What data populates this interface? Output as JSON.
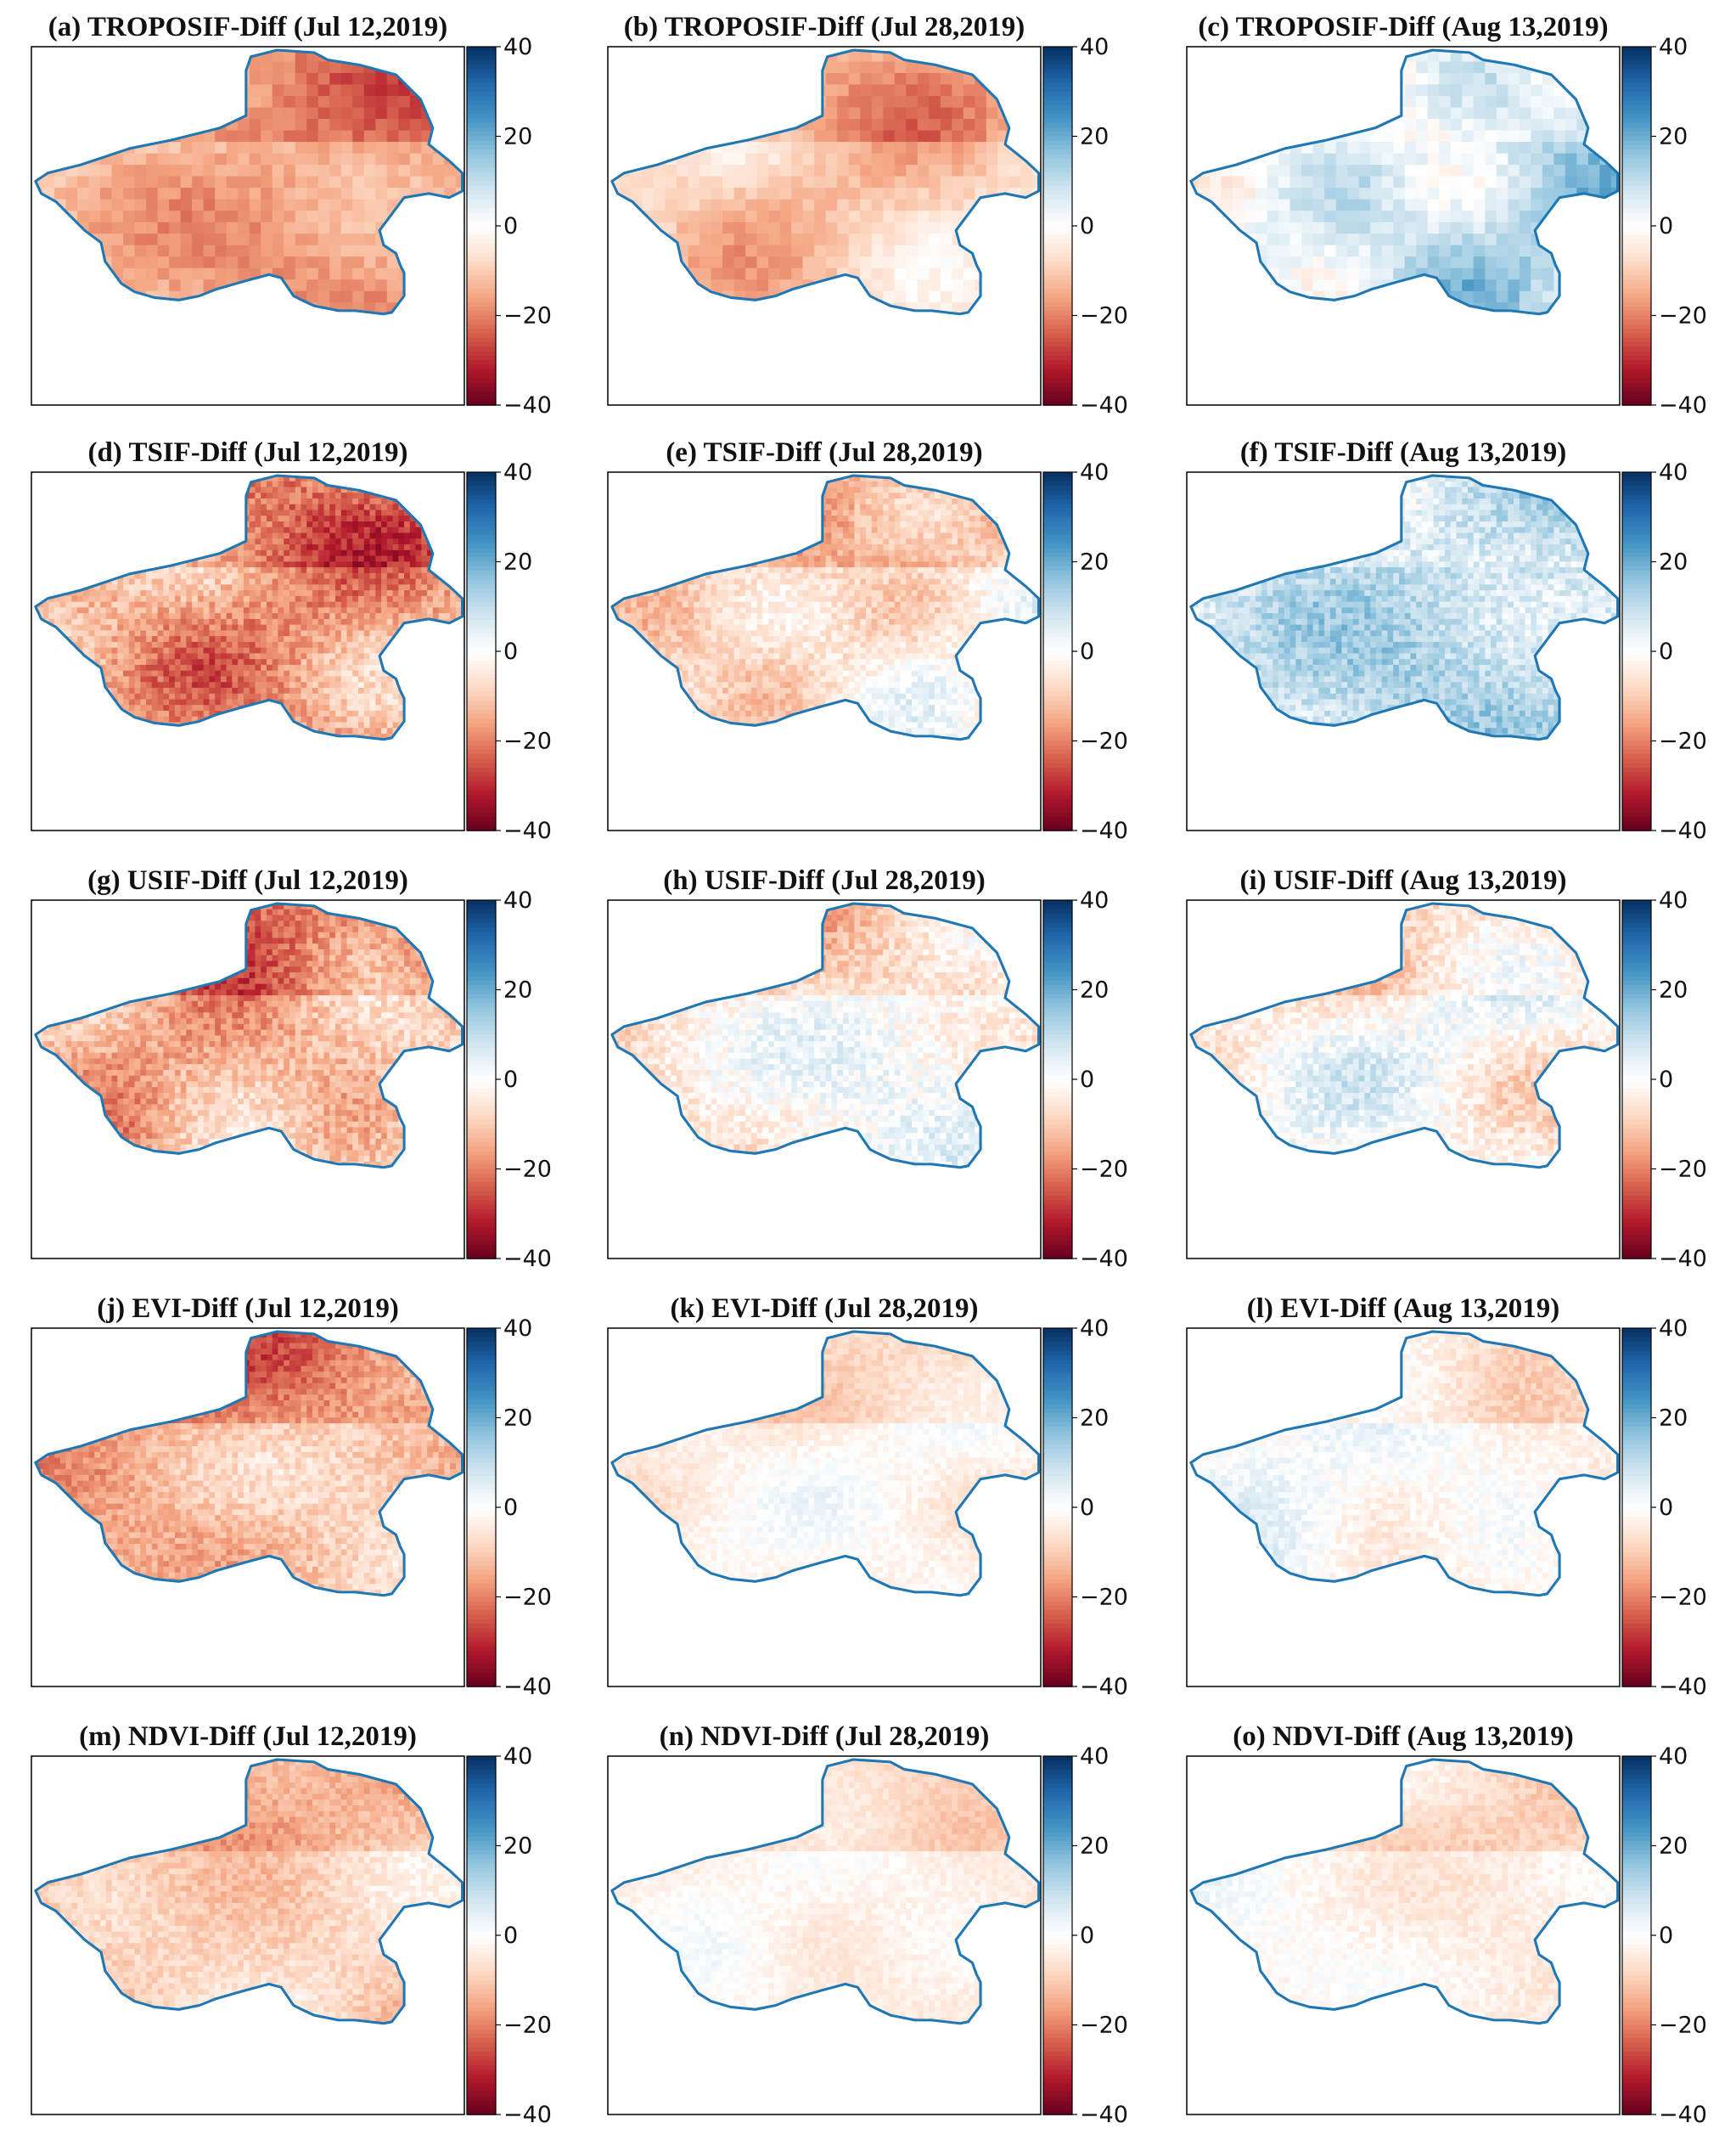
{
  "figure": {
    "colormap": "RdBu",
    "colors": {
      "boundary": "#1f77b4",
      "frame": "#000000",
      "ramp": [
        "#67001f",
        "#b2182b",
        "#d6604d",
        "#f4a582",
        "#fddbc7",
        "#ffffff",
        "#d1e5f0",
        "#92c5de",
        "#4393c3",
        "#2166ac",
        "#053061"
      ]
    },
    "colorbar": {
      "min": -40,
      "max": 40,
      "ticks": [
        40,
        20,
        0,
        -20,
        -40
      ],
      "tick_labels": [
        "40",
        "20",
        "0",
        "−20",
        "−40"
      ]
    },
    "rows": [
      {
        "product": "TROPOSIF",
        "panels": [
          {
            "id": "a",
            "title": "(a) TROPOSIF-Diff (Jul 12,2019)",
            "mean_anomaly": -14,
            "spread": 11,
            "texture": "coarse"
          },
          {
            "id": "b",
            "title": "(b) TROPOSIF-Diff (Jul 28,2019)",
            "mean_anomaly": -8,
            "spread": 10,
            "texture": "coarse"
          },
          {
            "id": "c",
            "title": "(c) TROPOSIF-Diff (Aug 13,2019)",
            "mean_anomaly": 7,
            "spread": 13,
            "texture": "coarse"
          }
        ]
      },
      {
        "product": "TSIF",
        "panels": [
          {
            "id": "d",
            "title": "(d) TSIF-Diff (Jul 12,2019)",
            "mean_anomaly": -14,
            "spread": 12,
            "texture": "fine"
          },
          {
            "id": "e",
            "title": "(e) TSIF-Diff (Jul 28,2019)",
            "mean_anomaly": -5,
            "spread": 10,
            "texture": "fine"
          },
          {
            "id": "f",
            "title": "(f) TSIF-Diff (Aug 13,2019)",
            "mean_anomaly": 8,
            "spread": 12,
            "texture": "fine"
          }
        ]
      },
      {
        "product": "USIF",
        "panels": [
          {
            "id": "g",
            "title": "(g) USIF-Diff (Jul 12,2019)",
            "mean_anomaly": -11,
            "spread": 12,
            "texture": "fine"
          },
          {
            "id": "h",
            "title": "(h) USIF-Diff (Jul 28,2019)",
            "mean_anomaly": -2,
            "spread": 11,
            "texture": "fine"
          },
          {
            "id": "i",
            "title": "(i) USIF-Diff (Aug 13,2019)",
            "mean_anomaly": -3,
            "spread": 11,
            "texture": "fine"
          }
        ]
      },
      {
        "product": "EVI",
        "panels": [
          {
            "id": "j",
            "title": "(j) EVI-Diff (Jul 12,2019)",
            "mean_anomaly": -12,
            "spread": 10,
            "texture": "fine"
          },
          {
            "id": "k",
            "title": "(k) EVI-Diff (Jul 28,2019)",
            "mean_anomaly": -3,
            "spread": 6,
            "texture": "fine"
          },
          {
            "id": "l",
            "title": "(l) EVI-Diff (Aug 13,2019)",
            "mean_anomaly": -1,
            "spread": 7,
            "texture": "fine"
          }
        ]
      },
      {
        "product": "NDVI",
        "panels": [
          {
            "id": "m",
            "title": "(m) NDVI-Diff (Jul 12,2019)",
            "mean_anomaly": -10,
            "spread": 8,
            "texture": "fine"
          },
          {
            "id": "n",
            "title": "(n) NDVI-Diff (Jul 28,2019)",
            "mean_anomaly": -3,
            "spread": 5,
            "texture": "fine"
          },
          {
            "id": "o",
            "title": "(o) NDVI-Diff (Aug 13,2019)",
            "mean_anomaly": -2,
            "spread": 6,
            "texture": "fine"
          }
        ]
      }
    ]
  }
}
